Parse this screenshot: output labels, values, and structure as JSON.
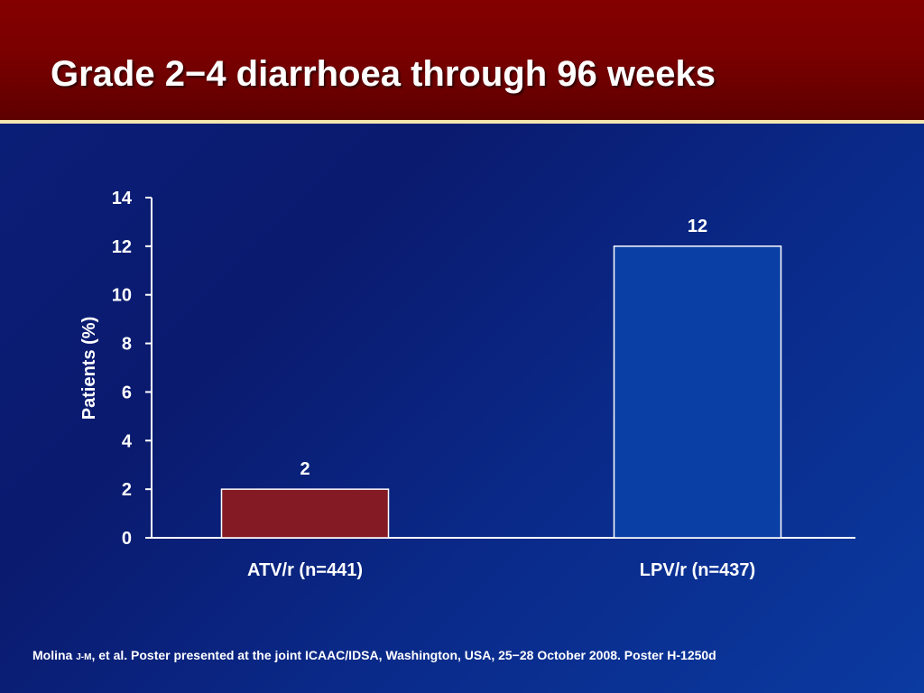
{
  "title": "Grade 2−4 diarrhoea through 96 weeks",
  "footer": {
    "author": "Molina",
    "initials": "J-M",
    "text": ", et al. Poster presented at the joint ICAAC/IDSA, Washington, USA, 25−28 October 2008. Poster H-1250d"
  },
  "colors": {
    "background": "#0b2a8a",
    "header": "#7a0000",
    "header_rule": "#f4e7b0",
    "bar_atv": "#841a24",
    "bar_lpv": "#0a3fa6"
  },
  "chart_data": {
    "type": "bar",
    "title": "",
    "xlabel": "",
    "ylabel": "Patients (%)",
    "ylim": [
      0,
      14
    ],
    "yticks": [
      0,
      2,
      4,
      6,
      8,
      10,
      12,
      14
    ],
    "grid": false,
    "categories": [
      "ATV/r (n=441)",
      "LPV/r (n=437)"
    ],
    "values": [
      2,
      12
    ],
    "data_labels": [
      "2",
      "12"
    ],
    "bar_colors": [
      "#841a24",
      "#0a3fa6"
    ]
  }
}
